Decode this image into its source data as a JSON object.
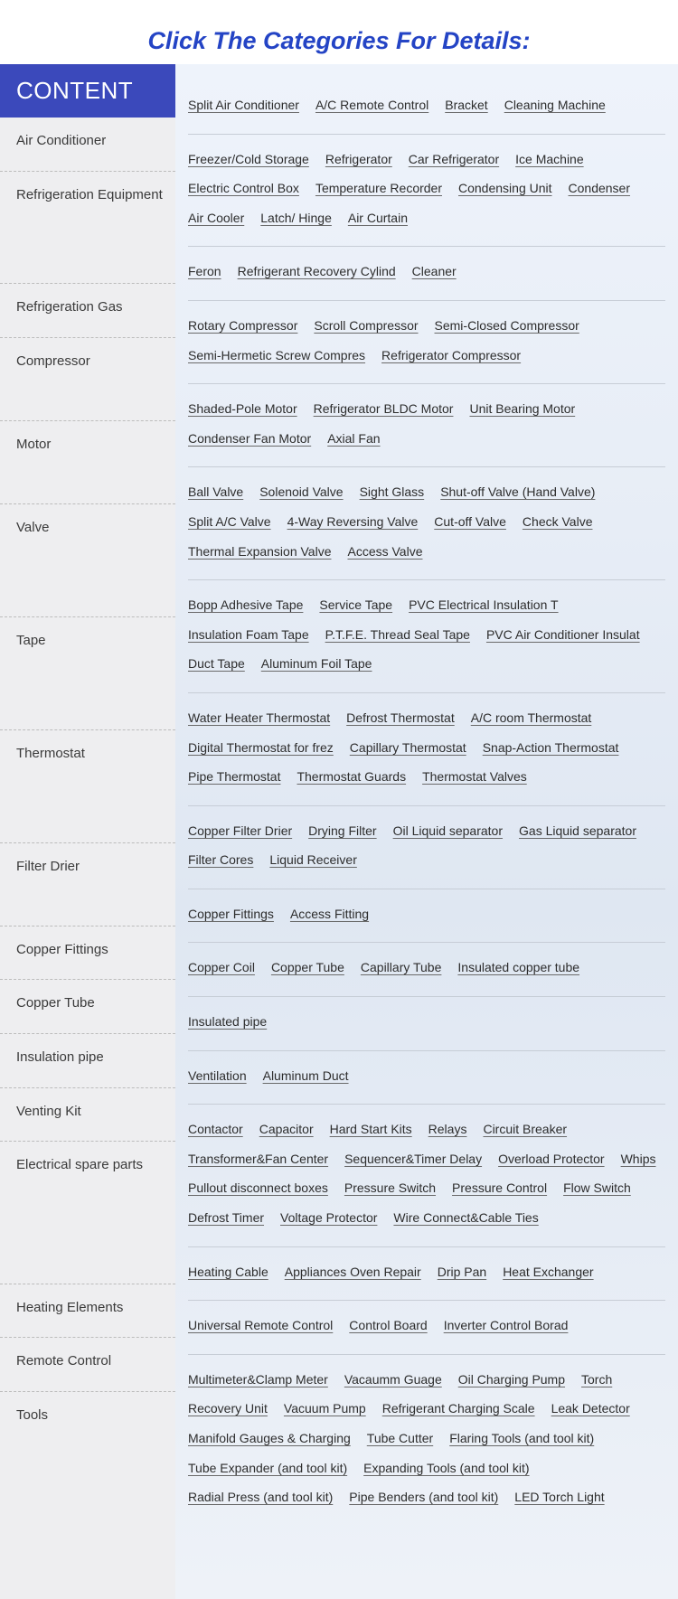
{
  "title": "Click The Categories For Details:",
  "content_label": "CONTENT",
  "colors": {
    "title": "#2444c5",
    "header_bg": "#3b49bb",
    "sidebar_bg": "#eeeef0",
    "main_bg_top": "#eef3fb",
    "main_bg_bottom": "#eef2f8",
    "text": "#3a3a3a",
    "link": "#2d2d2d"
  },
  "categories": [
    {
      "name": "Air Conditioner",
      "links": [
        "Split Air Conditioner",
        "A/C Remote Control",
        "Bracket",
        "Cleaning Machine"
      ]
    },
    {
      "name": "Refrigeration Equipment",
      "links": [
        "Freezer/Cold Storage",
        "Refrigerator",
        "Car Refrigerator",
        "Ice Machine",
        "Electric Control Box",
        "Temperature Recorder",
        "Condensing Unit",
        "Condenser",
        "Air Cooler",
        "Latch/ Hinge",
        "Air Curtain"
      ]
    },
    {
      "name": "Refrigeration Gas",
      "links": [
        "Feron",
        "Refrigerant Recovery Cylind",
        "Cleaner"
      ]
    },
    {
      "name": "Compressor",
      "links": [
        "Rotary Compressor",
        "Scroll Compressor",
        "Semi-Closed Compressor",
        "Semi-Hermetic Screw Compres",
        "Refrigerator Compressor"
      ]
    },
    {
      "name": "Motor",
      "links": [
        "Shaded-Pole Motor",
        "Refrigerator BLDC Motor",
        "Unit Bearing Motor",
        "Condenser Fan Motor",
        "Axial Fan"
      ]
    },
    {
      "name": "Valve",
      "links": [
        "Ball Valve",
        "Solenoid Valve",
        "Sight Glass",
        "Shut-off Valve (Hand Valve)",
        "Split A/C Valve",
        "4-Way Reversing Valve",
        "Cut-off Valve",
        "Check Valve",
        "Thermal Expansion Valve",
        "Access Valve"
      ]
    },
    {
      "name": "Tape",
      "links": [
        "Bopp Adhesive Tape",
        "Service Tape",
        "PVC Electrical Insulation T",
        "Insulation Foam Tape",
        "P.T.F.E. Thread Seal Tape",
        "PVC Air Conditioner Insulat",
        "Duct Tape",
        "  Aluminum Foil Tape"
      ]
    },
    {
      "name": "Thermostat",
      "links": [
        "Water Heater Thermostat",
        "Defrost Thermostat",
        "A/C room Thermostat",
        "Digital Thermostat for frez",
        "Capillary Thermostat",
        "Snap-Action Thermostat",
        "Pipe Thermostat",
        "Thermostat Guards",
        "Thermostat Valves"
      ]
    },
    {
      "name": "Filter Drier",
      "links": [
        "Copper Filter Drier",
        "Drying Filter",
        "Oil Liquid separator",
        "Gas Liquid separator",
        "Filter Cores",
        "Liquid Receiver"
      ]
    },
    {
      "name": "Copper Fittings",
      "links": [
        "Copper Fittings",
        "Access Fitting"
      ]
    },
    {
      "name": "Copper Tube",
      "links": [
        "Copper Coil",
        "Copper Tube",
        "Capillary Tube",
        "Insulated copper tube"
      ]
    },
    {
      "name": "Insulation pipe",
      "links": [
        "Insulated pipe"
      ]
    },
    {
      "name": "Venting Kit",
      "links": [
        "Ventilation",
        "Aluminum Duct"
      ]
    },
    {
      "name": "Electrical spare parts",
      "links": [
        "Contactor",
        "Capacitor",
        "Hard Start Kits",
        " Relays",
        "Circuit Breaker",
        "Transformer&Fan Center",
        "Sequencer&Timer Delay",
        "Overload Protector",
        "Whips",
        "Pullout disconnect boxes",
        "Pressure Switch",
        "Pressure Control",
        "Flow Switch",
        "Defrost Timer",
        "Voltage Protector",
        "Wire Connect&Cable Ties"
      ]
    },
    {
      "name": "Heating Elements",
      "links": [
        "Heating Cable",
        "Appliances Oven Repair",
        "Drip Pan",
        "Heat Exchanger"
      ]
    },
    {
      "name": "Remote Control",
      "links": [
        "Universal Remote Control",
        "Control Board",
        "Inverter Control Borad"
      ]
    },
    {
      "name": "Tools",
      "links": [
        "Multimeter&Clamp Meter",
        "Vacaumm Guage",
        "Oil Charging Pump",
        "Torch",
        "Recovery Unit",
        "Vacuum Pump",
        "Refrigerant Charging Scale",
        "Leak Detector",
        "Manifold Gauges & Charging",
        "Tube Cutter",
        "Flaring Tools (and tool kit)",
        "Tube Expander (and tool kit)",
        "Expanding Tools (and tool kit)",
        "Radial Press (and tool kit)",
        "Pipe Benders (and tool kit)",
        "LED Torch Light"
      ]
    }
  ]
}
